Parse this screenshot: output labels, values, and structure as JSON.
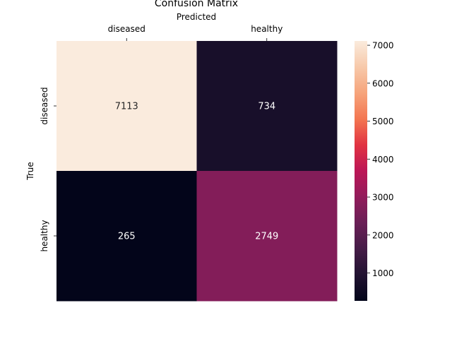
{
  "chart_data": {
    "type": "heatmap",
    "title": "Confusion Matrix",
    "xlabel": "Predicted",
    "ylabel": "True",
    "x_categories": [
      "diseased",
      "healthy"
    ],
    "y_categories": [
      "diseased",
      "healthy"
    ],
    "values": [
      [
        7113,
        734
      ],
      [
        265,
        2749
      ]
    ],
    "colorbar": {
      "ticks": [
        1000,
        2000,
        3000,
        4000,
        5000,
        6000,
        7000
      ],
      "range": [
        265,
        7113
      ]
    },
    "x_tick_position": "top",
    "colormap": "rocket",
    "colors": {
      "annot_light": "#ffffff",
      "annot_dark": "#262626"
    }
  }
}
